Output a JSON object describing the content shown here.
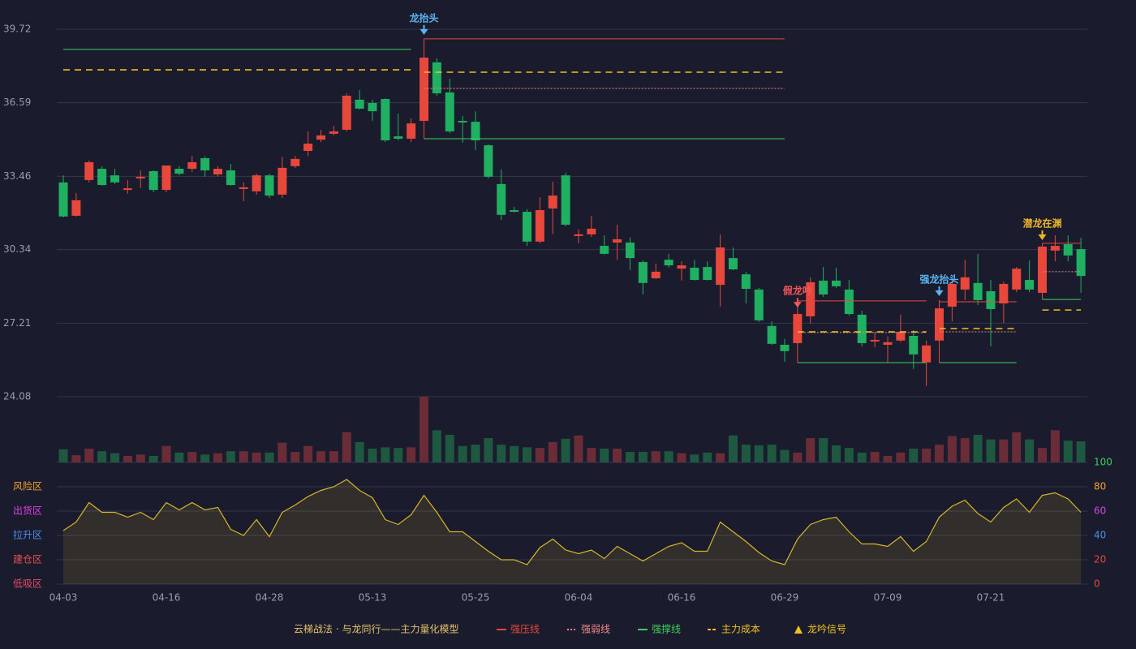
{
  "chart_data": {
    "type": "candlestick",
    "categories": [
      "04-03",
      null,
      null,
      null,
      null,
      null,
      null,
      null,
      "04-16",
      null,
      null,
      null,
      null,
      null,
      null,
      null,
      "04-28",
      null,
      null,
      null,
      null,
      null,
      null,
      null,
      "05-13",
      null,
      null,
      null,
      null,
      null,
      null,
      null,
      "05-25",
      null,
      null,
      null,
      null,
      null,
      null,
      null,
      "06-04",
      null,
      null,
      null,
      null,
      null,
      null,
      null,
      "06-16",
      null,
      null,
      null,
      null,
      null,
      null,
      null,
      "06-29",
      null,
      null,
      null,
      null,
      null,
      null,
      null,
      "07-09",
      null,
      null,
      null,
      null,
      null,
      null,
      null,
      "07-21",
      null,
      null,
      null,
      null,
      null,
      null,
      null
    ],
    "ylim": [
      24.08,
      39.72
    ],
    "yticks": [
      39.72,
      36.59,
      33.46,
      30.34,
      27.21,
      24.08
    ],
    "grid": true,
    "up_color": "#e8473c",
    "down_color": "#1fb062",
    "ohlc": [
      [
        33.2,
        33.5,
        31.71,
        31.75
      ],
      [
        31.78,
        32.75,
        31.75,
        32.44
      ],
      [
        33.3,
        34.13,
        33.2,
        34.06
      ],
      [
        33.78,
        33.89,
        33.06,
        33.09
      ],
      [
        33.5,
        33.78,
        33.13,
        33.2
      ],
      [
        32.88,
        33.3,
        32.71,
        32.95
      ],
      [
        33.37,
        33.71,
        32.95,
        33.44
      ],
      [
        33.68,
        33.71,
        32.78,
        32.88
      ],
      [
        32.88,
        33.82,
        32.78,
        33.92
      ],
      [
        33.78,
        33.89,
        33.5,
        33.57
      ],
      [
        33.78,
        34.33,
        33.64,
        34.06
      ],
      [
        34.23,
        34.3,
        33.44,
        33.71
      ],
      [
        33.54,
        33.89,
        33.44,
        33.78
      ],
      [
        33.71,
        33.99,
        33.06,
        33.09
      ],
      [
        32.92,
        33.2,
        32.4,
        32.99
      ],
      [
        32.82,
        33.57,
        32.68,
        33.5
      ],
      [
        33.5,
        33.57,
        32.54,
        32.64
      ],
      [
        32.68,
        34.3,
        32.54,
        33.82
      ],
      [
        33.89,
        34.33,
        33.82,
        34.2
      ],
      [
        34.54,
        35.37,
        34.33,
        34.85
      ],
      [
        35.02,
        35.44,
        34.92,
        35.2
      ],
      [
        35.27,
        35.61,
        35.2,
        35.37
      ],
      [
        35.44,
        36.99,
        35.37,
        36.89
      ],
      [
        36.72,
        37.13,
        36.3,
        36.34
      ],
      [
        36.58,
        36.72,
        35.82,
        36.23
      ],
      [
        36.75,
        36.78,
        34.92,
        34.99
      ],
      [
        35.16,
        36.13,
        34.99,
        35.06
      ],
      [
        35.06,
        35.92,
        34.92,
        35.71
      ],
      [
        35.82,
        39.31,
        35.47,
        38.51
      ],
      [
        38.31,
        38.48,
        36.89,
        36.99
      ],
      [
        37.03,
        37.61,
        35.3,
        35.37
      ],
      [
        35.82,
        36.03,
        34.89,
        35.75
      ],
      [
        35.78,
        36.23,
        34.58,
        34.99
      ],
      [
        34.78,
        34.82,
        33.37,
        33.44
      ],
      [
        33.13,
        33.75,
        31.61,
        31.82
      ],
      [
        32.02,
        32.16,
        31.92,
        31.95
      ],
      [
        31.95,
        32.06,
        30.5,
        30.68
      ],
      [
        30.68,
        32.57,
        30.61,
        32.02
      ],
      [
        32.09,
        33.23,
        30.99,
        32.64
      ],
      [
        33.5,
        33.61,
        31.33,
        31.4
      ],
      [
        30.92,
        31.2,
        30.61,
        30.99
      ],
      [
        30.99,
        31.78,
        30.88,
        31.23
      ],
      [
        30.5,
        30.95,
        30.12,
        30.16
      ],
      [
        30.64,
        31.4,
        29.91,
        30.78
      ],
      [
        30.64,
        30.85,
        29.47,
        29.98
      ],
      [
        29.81,
        29.88,
        28.43,
        28.92
      ],
      [
        29.12,
        29.74,
        29.09,
        29.4
      ],
      [
        29.91,
        30.16,
        29.57,
        29.67
      ],
      [
        29.53,
        29.84,
        29.02,
        29.67
      ],
      [
        29.57,
        29.91,
        29.02,
        29.05
      ],
      [
        29.6,
        29.84,
        29.02,
        29.05
      ],
      [
        28.84,
        30.99,
        27.91,
        30.43
      ],
      [
        29.98,
        30.43,
        29.47,
        29.5
      ],
      [
        29.29,
        29.4,
        28.05,
        28.67
      ],
      [
        28.64,
        28.71,
        27.26,
        27.33
      ],
      [
        27.09,
        27.29,
        26.29,
        26.33
      ],
      [
        26.29,
        26.54,
        25.57,
        26.02
      ],
      [
        26.36,
        27.7,
        26.33,
        27.6
      ],
      [
        27.5,
        29.16,
        27.19,
        28.95
      ],
      [
        29.02,
        29.6,
        28.33,
        28.43
      ],
      [
        29.02,
        29.57,
        28.71,
        28.78
      ],
      [
        28.64,
        29.05,
        27.53,
        27.6
      ],
      [
        27.57,
        27.74,
        26.22,
        26.36
      ],
      [
        26.43,
        26.84,
        26.19,
        26.5
      ],
      [
        26.29,
        26.64,
        25.54,
        26.4
      ],
      [
        26.47,
        27.57,
        26.4,
        26.84
      ],
      [
        26.67,
        26.91,
        25.26,
        25.88
      ],
      [
        25.54,
        26.47,
        24.53,
        26.26
      ],
      [
        26.47,
        28.19,
        26.19,
        27.84
      ],
      [
        27.91,
        29.09,
        27.29,
        28.88
      ],
      [
        28.64,
        29.91,
        28.19,
        29.16
      ],
      [
        28.92,
        30.16,
        27.98,
        28.19
      ],
      [
        28.57,
        29.05,
        26.22,
        27.81
      ],
      [
        28.05,
        28.98,
        27.22,
        28.88
      ],
      [
        28.64,
        29.6,
        28.53,
        29.53
      ],
      [
        29.05,
        29.88,
        28.53,
        28.64
      ],
      [
        28.5,
        30.57,
        28.43,
        30.47
      ],
      [
        30.3,
        30.95,
        29.84,
        30.5
      ],
      [
        30.57,
        30.95,
        29.84,
        30.09
      ],
      [
        30.36,
        30.85,
        28.5,
        29.22
      ]
    ],
    "volume": {
      "ylim": [
        0,
        100
      ],
      "values": [
        20,
        11,
        21,
        17,
        14,
        10,
        12,
        10,
        25,
        15,
        16,
        12,
        14,
        17,
        17,
        15,
        15,
        30,
        16,
        25,
        17,
        17,
        46,
        31,
        21,
        23,
        22,
        23,
        100,
        49,
        42,
        25,
        27,
        37,
        27,
        25,
        23,
        22,
        31,
        36,
        41,
        22,
        21,
        21,
        16,
        16,
        17,
        17,
        14,
        12,
        15,
        14,
        41,
        27,
        26,
        27,
        19,
        15,
        37,
        37,
        26,
        22,
        15,
        16,
        10,
        15,
        21,
        21,
        27,
        40,
        37,
        42,
        35,
        35,
        46,
        35,
        22,
        49,
        33,
        32
      ]
    },
    "indicator": {
      "ylim": [
        0,
        100
      ],
      "yticks": [
        0,
        20,
        40,
        60,
        80,
        100
      ],
      "tick_colors": [
        "#e8473c",
        "#e8473c",
        "#4a90e8",
        "#e040e0",
        "#f0a030",
        "#3ecf5c"
      ],
      "color": "#d8b52a",
      "values": [
        44,
        51,
        67,
        59,
        59,
        55,
        59,
        53,
        67,
        61,
        67,
        61,
        63,
        45,
        40,
        53,
        39,
        59,
        65,
        72,
        77,
        80,
        86,
        77,
        71,
        53,
        49,
        57,
        73,
        59,
        43,
        43,
        35,
        27,
        20,
        20,
        16,
        30,
        37,
        28,
        25,
        28,
        21,
        31,
        25,
        19,
        25,
        31,
        34,
        27,
        27,
        51,
        43,
        35,
        26,
        19,
        16,
        37,
        49,
        53,
        55,
        43,
        33,
        33,
        31,
        39,
        27,
        35,
        55,
        64,
        69,
        58,
        51,
        63,
        70,
        59,
        73,
        75,
        70,
        59
      ],
      "zones": [
        {
          "label": "风险区",
          "value": 80,
          "color": "#f0a030"
        },
        {
          "label": "出货区",
          "value": 60,
          "color": "#e040e0"
        },
        {
          "label": "拉升区",
          "value": 40,
          "color": "#4a90e8"
        },
        {
          "label": "建仓区",
          "value": 20,
          "color": "#e85050"
        },
        {
          "label": "低吸区",
          "value": 0,
          "color": "#e84a6a"
        }
      ]
    },
    "legend_title": "云梯战法 · 与龙同行——主力量化模型",
    "legend": [
      {
        "name": "强压线",
        "color": "#e8473c",
        "style": "solid"
      },
      {
        "name": "强弱线",
        "color": "#f08a8a",
        "style": "dotted"
      },
      {
        "name": "强撑线",
        "color": "#3ecf5c",
        "style": "solid"
      },
      {
        "name": "主力成本",
        "color": "#f0c020",
        "style": "dashed"
      },
      {
        "name": "龙吟信号",
        "color": "#f0c020",
        "style": "triangle"
      }
    ],
    "levels": [
      {
        "line": 2,
        "from": 0,
        "to": 27,
        "value": 38.86
      },
      {
        "line": 3,
        "from": 0,
        "to": 27,
        "value": 37.99
      },
      {
        "line": 0,
        "from": 28,
        "to": 56,
        "value": 39.31
      },
      {
        "line": 3,
        "from": 28,
        "to": 56,
        "value": 37.89
      },
      {
        "line": 1,
        "from": 28,
        "to": 56,
        "value": 37.2
      },
      {
        "line": 2,
        "from": 28,
        "to": 56,
        "value": 35.06
      },
      {
        "line": 0,
        "from": 57,
        "to": 67,
        "value": 28.16
      },
      {
        "line": 1,
        "from": 57,
        "to": 67,
        "value": 26.81
      },
      {
        "line": 3,
        "from": 57,
        "to": 67,
        "value": 26.84
      },
      {
        "line": 2,
        "from": 57,
        "to": 67,
        "value": 25.53
      },
      {
        "line": 0,
        "from": 68,
        "to": 74,
        "value": 28.12
      },
      {
        "line": 3,
        "from": 68,
        "to": 74,
        "value": 26.98
      },
      {
        "line": 1,
        "from": 68,
        "to": 74,
        "value": 26.84
      },
      {
        "line": 2,
        "from": 68,
        "to": 74,
        "value": 25.53
      },
      {
        "line": 0,
        "from": 76,
        "to": 79,
        "value": 30.61
      },
      {
        "line": 1,
        "from": 76,
        "to": 79,
        "value": 29.4
      },
      {
        "line": 2,
        "from": 76,
        "to": 79,
        "value": 28.22
      },
      {
        "line": 3,
        "from": 76,
        "to": 79,
        "value": 27.77
      }
    ],
    "signals": [
      {
        "index": 28,
        "label": "龙抬头",
        "color": "#5ab4f0"
      },
      {
        "index": 57,
        "label": "假龙吟",
        "color": "#f0585a"
      },
      {
        "index": 68,
        "label": "强龙抬头",
        "color": "#5ab4f0"
      },
      {
        "index": 76,
        "label": "潜龙在渊",
        "color": "#f0b429"
      }
    ]
  }
}
